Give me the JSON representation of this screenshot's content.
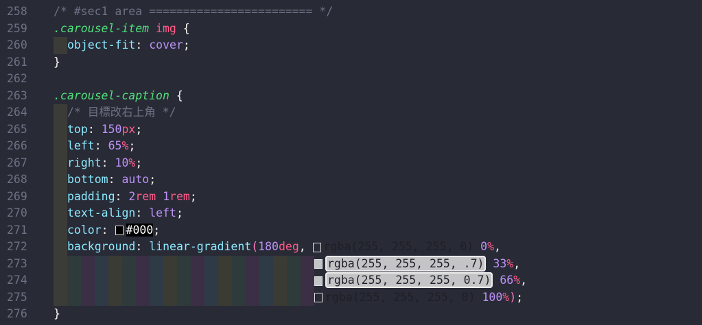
{
  "editor": {
    "lines": [
      {
        "n": "258",
        "indent": 0,
        "tokens": [
          [
            "/* #sec1 area ======================== */",
            "c"
          ]
        ]
      },
      {
        "n": "259",
        "indent": 0,
        "tokens": [
          [
            ".carousel-item",
            "sel"
          ],
          [
            " img",
            "tag"
          ],
          [
            " {",
            "p"
          ]
        ]
      },
      {
        "n": "260",
        "indent": 1,
        "tokens": [
          [
            "object-fit",
            "prop"
          ],
          [
            ": ",
            "p"
          ],
          [
            "cover",
            "val"
          ],
          [
            ";",
            "p"
          ]
        ]
      },
      {
        "n": "261",
        "indent": 0,
        "tokens": [
          [
            "}",
            "p"
          ]
        ]
      },
      {
        "n": "262",
        "indent": 0,
        "tokens": []
      },
      {
        "n": "263",
        "indent": 0,
        "tokens": [
          [
            ".carousel-caption",
            "sel"
          ],
          [
            " {",
            "p"
          ]
        ]
      },
      {
        "n": "264",
        "indent": 1,
        "tokens": [
          [
            "/* 目標改右上角 */",
            "c"
          ]
        ]
      },
      {
        "n": "265",
        "indent": 1,
        "tokens": [
          [
            "top",
            "prop"
          ],
          [
            ": ",
            "p"
          ],
          [
            "150",
            "num"
          ],
          [
            "px",
            "unit"
          ],
          [
            ";",
            "p"
          ]
        ]
      },
      {
        "n": "266",
        "indent": 1,
        "tokens": [
          [
            "left",
            "prop"
          ],
          [
            ": ",
            "p"
          ],
          [
            "65",
            "num"
          ],
          [
            "%",
            "unit"
          ],
          [
            ";",
            "p"
          ]
        ]
      },
      {
        "n": "267",
        "indent": 1,
        "tokens": [
          [
            "right",
            "prop"
          ],
          [
            ": ",
            "p"
          ],
          [
            "10",
            "num"
          ],
          [
            "%",
            "unit"
          ],
          [
            ";",
            "p"
          ]
        ]
      },
      {
        "n": "268",
        "indent": 1,
        "tokens": [
          [
            "bottom",
            "prop"
          ],
          [
            ": ",
            "p"
          ],
          [
            "auto",
            "val"
          ],
          [
            ";",
            "p"
          ]
        ]
      },
      {
        "n": "269",
        "indent": 1,
        "tokens": [
          [
            "padding",
            "prop"
          ],
          [
            ": ",
            "p"
          ],
          [
            "2",
            "num"
          ],
          [
            "rem",
            "unit"
          ],
          [
            " ",
            "p"
          ],
          [
            "1",
            "num"
          ],
          [
            "rem",
            "unit"
          ],
          [
            ";",
            "p"
          ]
        ]
      },
      {
        "n": "270",
        "indent": 1,
        "tokens": [
          [
            "text-align",
            "prop"
          ],
          [
            ": ",
            "p"
          ],
          [
            "left",
            "val"
          ],
          [
            ";",
            "p"
          ]
        ]
      },
      {
        "n": "271",
        "indent": 1,
        "tokens": [
          [
            "color",
            "prop"
          ],
          [
            ": ",
            "p"
          ],
          [
            "",
            "swatch-black"
          ],
          [
            "#000",
            "black"
          ],
          [
            ";",
            "p"
          ]
        ]
      },
      {
        "n": "272",
        "indent": 1,
        "tokens": [
          [
            "background",
            "prop"
          ],
          [
            ": ",
            "p"
          ],
          [
            "linear-gradient",
            "fn"
          ],
          [
            "(",
            "paren"
          ],
          [
            "180",
            "num"
          ],
          [
            "deg",
            "unit"
          ],
          [
            ", ",
            "p"
          ],
          [
            "",
            "swatch-empty"
          ],
          [
            "rgba(255, 255, 255, 0)",
            "dark"
          ],
          [
            " ",
            "p"
          ],
          [
            "0",
            "num"
          ],
          [
            "%",
            "unit"
          ],
          [
            ",",
            "p"
          ]
        ]
      },
      {
        "n": "273",
        "indent": "stripes",
        "tokens": [
          [
            "",
            "swatch-grey"
          ],
          [
            "rgba(255, 255, 255, .7)",
            "hl"
          ],
          [
            " ",
            "p"
          ],
          [
            "33",
            "num"
          ],
          [
            "%",
            "unit"
          ],
          [
            ",",
            "p"
          ]
        ]
      },
      {
        "n": "274",
        "indent": "stripes",
        "tokens": [
          [
            "",
            "swatch-grey"
          ],
          [
            "rgba(255, 255, 255, 0.7)",
            "hl"
          ],
          [
            " ",
            "p"
          ],
          [
            "66",
            "num"
          ],
          [
            "%",
            "unit"
          ],
          [
            ",",
            "p"
          ]
        ]
      },
      {
        "n": "275",
        "indent": "stripes",
        "tokens": [
          [
            "",
            "swatch-empty"
          ],
          [
            "rgba(255, 255, 255, 0)",
            "dark"
          ],
          [
            " ",
            "p"
          ],
          [
            "100",
            "num"
          ],
          [
            "%",
            "unit"
          ],
          [
            ")",
            "paren"
          ],
          [
            ";",
            "p"
          ]
        ]
      },
      {
        "n": "276",
        "indent": 0,
        "tokens": [
          [
            "}",
            "p"
          ]
        ]
      }
    ]
  },
  "colors": {
    "background": "#282a36",
    "selector": "#50e07a",
    "property": "#8be9fd",
    "value": "#bd93f9",
    "unit": "#ff5c8a",
    "comment": "#6e7183"
  }
}
